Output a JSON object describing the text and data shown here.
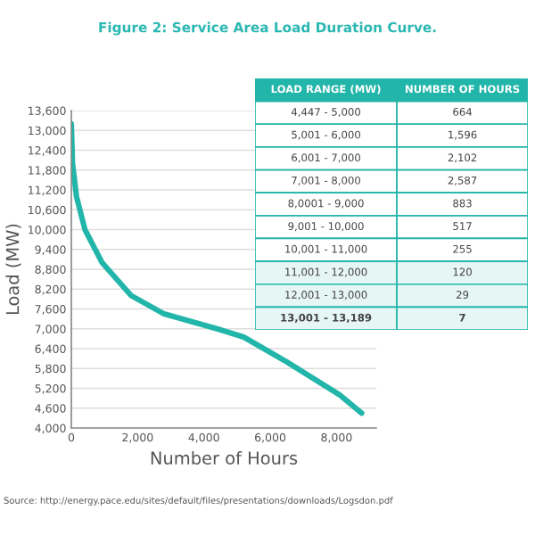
{
  "chart_data": [
    {
      "type": "line",
      "title": "Figure 2: Service Area Load Duration Curve.",
      "xlabel": "Number of Hours",
      "ylabel": "Load (MW)",
      "x": [
        0,
        7,
        36,
        156,
        411,
        928,
        1811,
        2800,
        4398,
        5200,
        6500,
        8096,
        8760
      ],
      "series": [
        {
          "color": "#22b5a9",
          "values": [
            13200,
            13000,
            12000,
            11000,
            10000,
            9000,
            8000,
            7450,
            7000,
            6750,
            6000,
            5000,
            4450
          ]
        }
      ],
      "xlim": [
        0,
        9200
      ],
      "xticks": [
        0,
        {
          "value": 2000,
          "label": "2,000"
        },
        {
          "value": 4000,
          "label": "4,000"
        },
        {
          "value": 6000,
          "label": "6,000"
        },
        {
          "value": 8000,
          "label": "8,000"
        }
      ],
      "ylim": [
        4000,
        13600
      ],
      "yticks": [
        {
          "value": 4000,
          "label": "4,000"
        },
        {
          "value": 4600,
          "label": "4,600"
        },
        {
          "value": 5200,
          "label": "5,200"
        },
        {
          "value": 5800,
          "label": "5,800"
        },
        {
          "value": 6400,
          "label": "6,400"
        },
        {
          "value": 7000,
          "label": "7,000"
        },
        {
          "value": 7600,
          "label": "7,600"
        },
        {
          "value": 8200,
          "label": "8,200"
        },
        {
          "value": 8800,
          "label": "8,800"
        },
        {
          "value": 9400,
          "label": "9,400"
        },
        {
          "value": 10000,
          "label": "10,000"
        },
        {
          "value": 10600,
          "label": "10,600"
        },
        {
          "value": 11200,
          "label": "11,200"
        },
        {
          "value": 11800,
          "label": "11,800"
        },
        {
          "value": 12400,
          "label": "12,400"
        },
        {
          "value": 13000,
          "label": "13,000"
        },
        {
          "value": 13600,
          "label": "13,600"
        }
      ],
      "grid": "y",
      "annotations": [
        "Source: http://energy.pace.edu/sites/default/files/presentations/downloads/Logsdon.pdf"
      ]
    },
    {
      "type": "other",
      "annotations": [
        "LOAD RANGE (MW)",
        "NUMBER OF HOURS",
        "4,447 - 5,000",
        "664",
        "5,001 - 6,000",
        "1,596",
        "6,001 - 7,000",
        "2,102",
        "7,001 - 8,000",
        "2,587",
        "8,0001 - 9,000",
        "883",
        "9,001 - 10,000",
        "517",
        "10,001 - 11,000",
        "255",
        "11,001 - 12,000",
        "120",
        "12,001 - 13,000",
        "29",
        "13,001 - 13,189",
        "7"
      ]
    }
  ]
}
